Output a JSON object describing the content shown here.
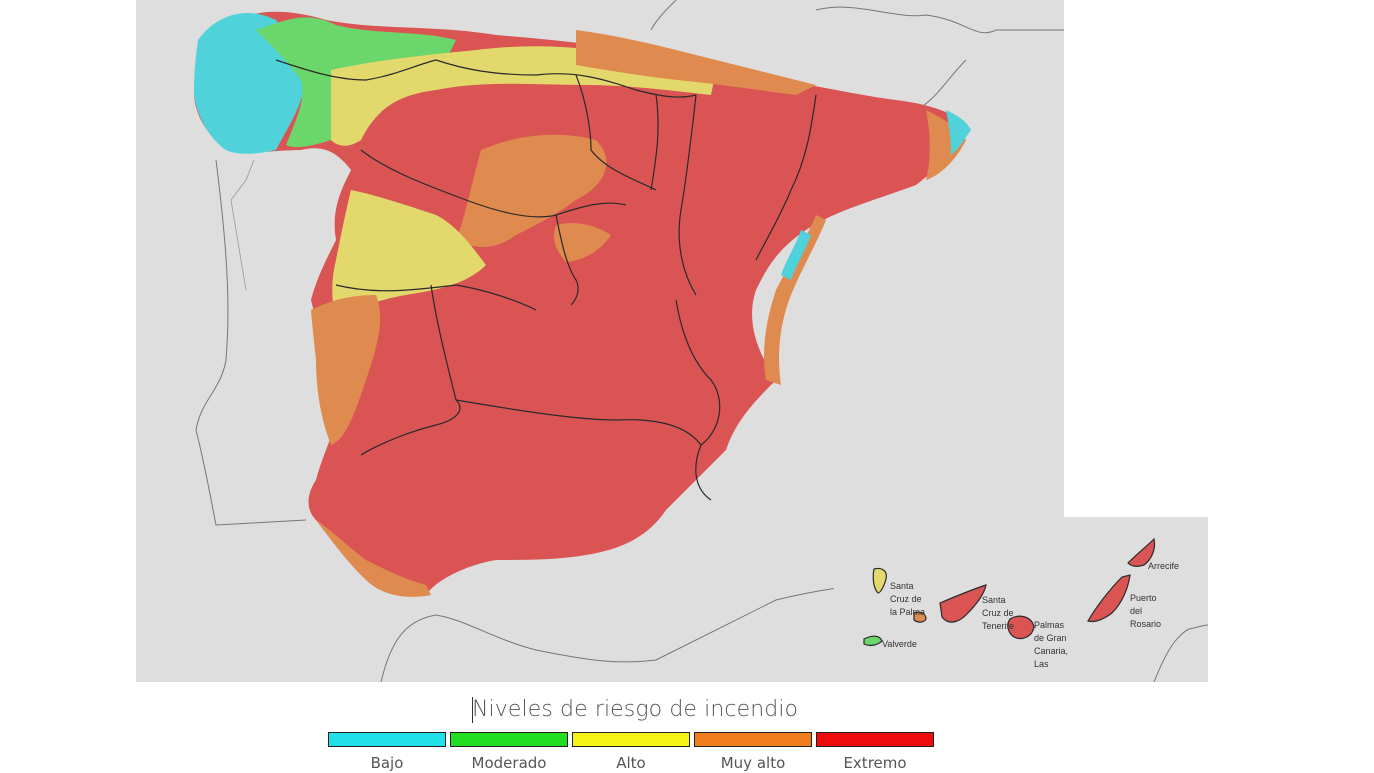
{
  "legend": {
    "title": "Niveles de riesgo de incendio",
    "levels": [
      {
        "label": "Bajo",
        "color": "#22e0e8"
      },
      {
        "label": "Moderado",
        "color": "#22dd22"
      },
      {
        "label": "Alto",
        "color": "#f3f318"
      },
      {
        "label": "Muy alto",
        "color": "#f07d1e"
      },
      {
        "label": "Extremo",
        "color": "#ee0d0d"
      }
    ]
  },
  "map_colors": {
    "background": "#dedede",
    "extremo": "#da5454",
    "muy_alto": "#df8a4e",
    "alto": "#e2d86c",
    "moderado": "#6bd66b",
    "bajo": "#4fd2d9",
    "coast": "#777777",
    "border": "#2a2a2a"
  },
  "canarias": {
    "cities": [
      {
        "name": "Santa\nCruz de\nla Palma"
      },
      {
        "name": "Valverde"
      },
      {
        "name": "Santa\nCruz de\nTenerife"
      },
      {
        "name": "Palmas\nde Gran\nCanaria,\nLas"
      },
      {
        "name": "Arrecife"
      },
      {
        "name": "Puerto\ndel\nRosario"
      }
    ]
  }
}
